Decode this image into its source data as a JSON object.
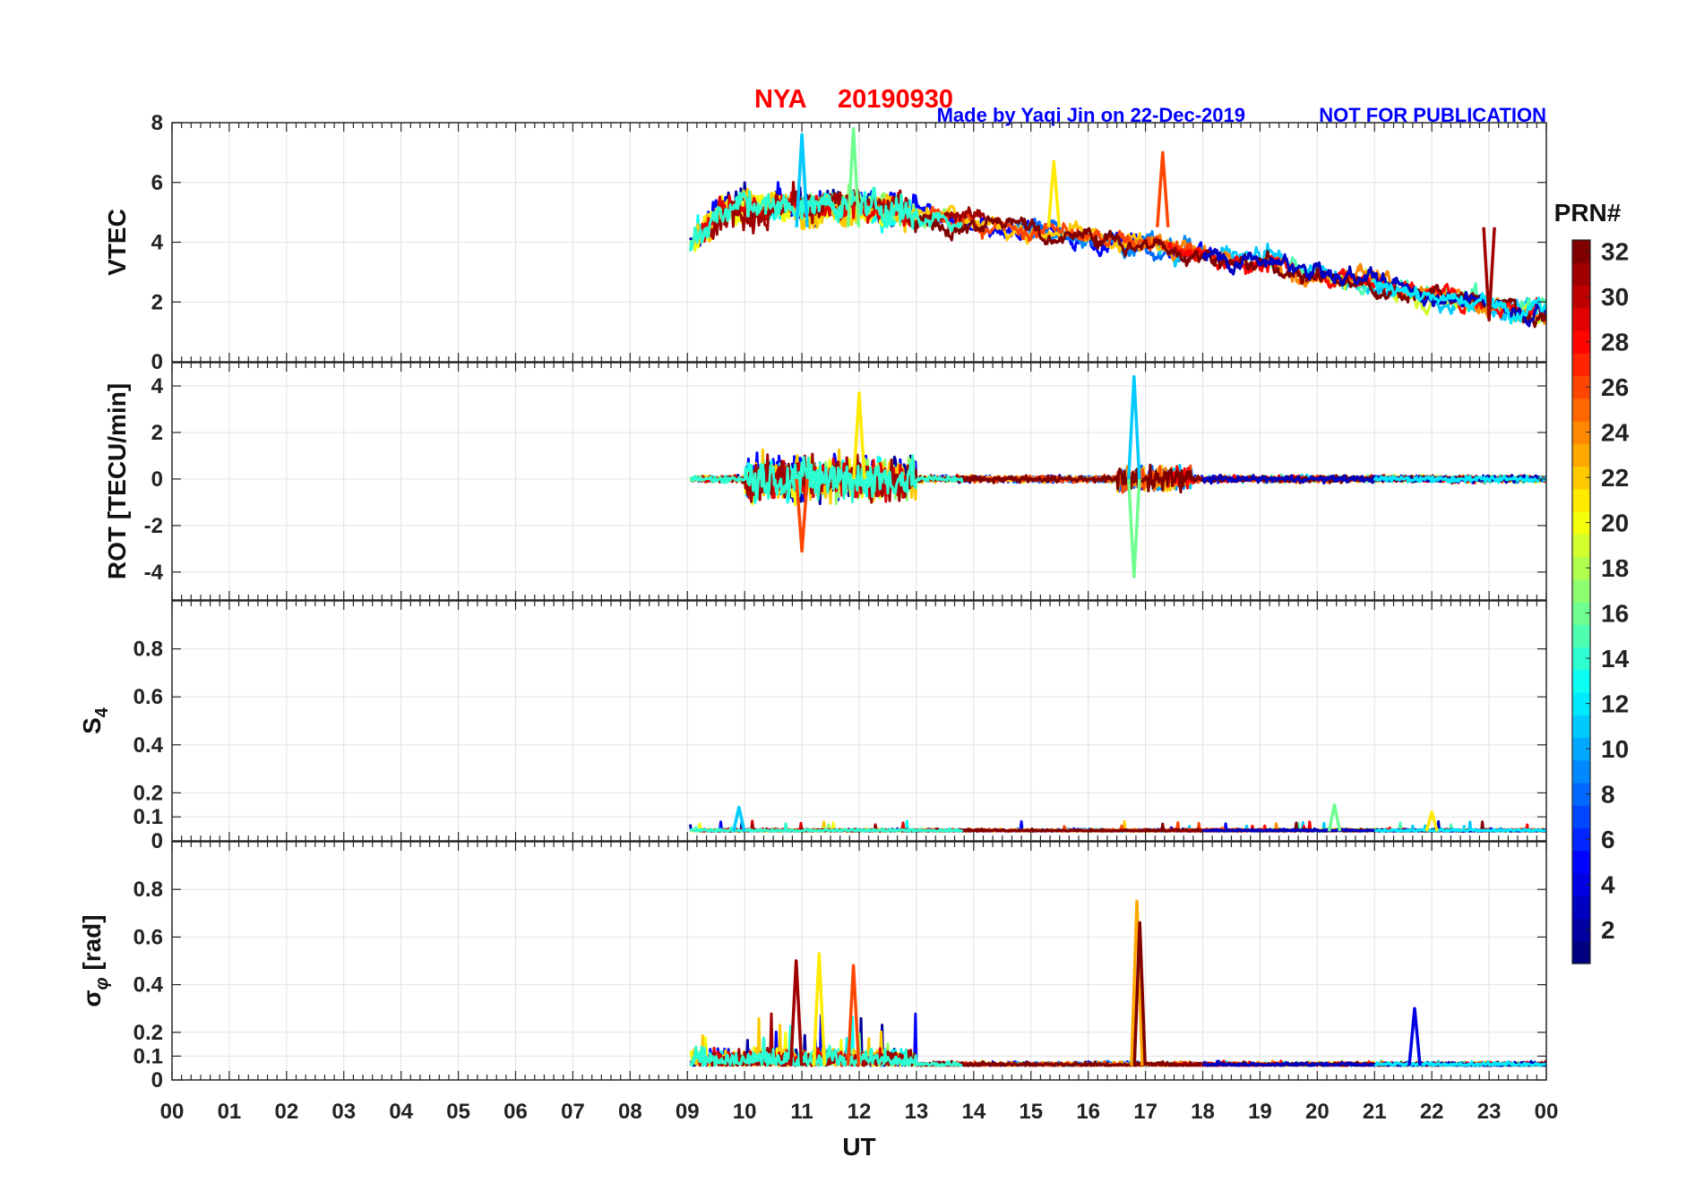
{
  "header": {
    "station": "NYA",
    "date": "20190930",
    "credit": "Made by Yaqi Jin on 22-Dec-2019",
    "notice": "NOT FOR PUBLICATION"
  },
  "colors": {
    "title_red": "#ff0000",
    "credit_blue": "#0000ff",
    "axis": "#262626",
    "grid": "#e2e2e2"
  },
  "chart_data": {
    "type": "line",
    "xlabel": "UT",
    "x_ticks": [
      "00",
      "01",
      "02",
      "03",
      "04",
      "05",
      "06",
      "07",
      "08",
      "09",
      "10",
      "11",
      "12",
      "13",
      "14",
      "15",
      "16",
      "17",
      "18",
      "19",
      "20",
      "21",
      "22",
      "23",
      "00"
    ],
    "xlim": [
      0,
      24
    ],
    "data_start_ut": 9.05,
    "series_description": "One line per GPS satellite PRN, colored by PRN number (jet colormap)",
    "colorbar": {
      "label": "PRN#",
      "range": [
        1,
        32
      ],
      "ticks": [
        "2",
        "4",
        "6",
        "8",
        "10",
        "12",
        "14",
        "16",
        "18",
        "20",
        "22",
        "24",
        "26",
        "28",
        "30",
        "32"
      ]
    },
    "panels": [
      {
        "id": "vtec",
        "ylabel": "VTEC",
        "ylim": [
          0,
          8
        ],
        "yticks": [
          "0",
          "2",
          "4",
          "6",
          "8"
        ],
        "typical_range": [
          1.4,
          7.7
        ],
        "features": [
          {
            "ut": 11.0,
            "value": 7.6
          },
          {
            "ut": 11.9,
            "value": 7.8
          },
          {
            "ut": 15.4,
            "value": 6.7
          },
          {
            "ut": 17.3,
            "value": 7.0
          },
          {
            "ut": 23.0,
            "value": 1.4
          }
        ]
      },
      {
        "id": "rot",
        "ylabel": "ROT [TECU/min]",
        "ylim": [
          -5.2,
          5.0
        ],
        "yticks": [
          "-4",
          "-2",
          "0",
          "2",
          "4"
        ],
        "features": [
          {
            "ut": 16.8,
            "value": 4.4
          },
          {
            "ut": 16.8,
            "value": -4.2
          },
          {
            "ut": 12.0,
            "value": 3.7
          },
          {
            "ut": 11.0,
            "value": -3.1
          }
        ]
      },
      {
        "id": "s4",
        "ylabel": "S4",
        "ylim": [
          0,
          1.0
        ],
        "yticks": [
          "0",
          "0.1",
          "0.2",
          "0.4",
          "0.6",
          "0.8"
        ],
        "baseline": 0.04,
        "features": [
          {
            "ut": 9.9,
            "value": 0.14
          },
          {
            "ut": 20.3,
            "value": 0.15
          },
          {
            "ut": 22.0,
            "value": 0.12
          }
        ]
      },
      {
        "id": "sigma_phi",
        "ylabel": "σ_φ [rad]",
        "ylabel_base": "σ",
        "ylabel_sub": "φ",
        "ylabel_rest": "[rad]",
        "ylim": [
          0,
          1.0
        ],
        "yticks": [
          "0",
          "0.1",
          "0.2",
          "0.4",
          "0.6",
          "0.8"
        ],
        "baseline": 0.06,
        "features": [
          {
            "ut": 16.85,
            "value": 0.75
          },
          {
            "ut": 16.9,
            "value": 0.66
          },
          {
            "ut": 11.3,
            "value": 0.53
          },
          {
            "ut": 11.9,
            "value": 0.48
          },
          {
            "ut": 10.9,
            "value": 0.5
          },
          {
            "ut": 21.7,
            "value": 0.3
          }
        ]
      }
    ]
  }
}
